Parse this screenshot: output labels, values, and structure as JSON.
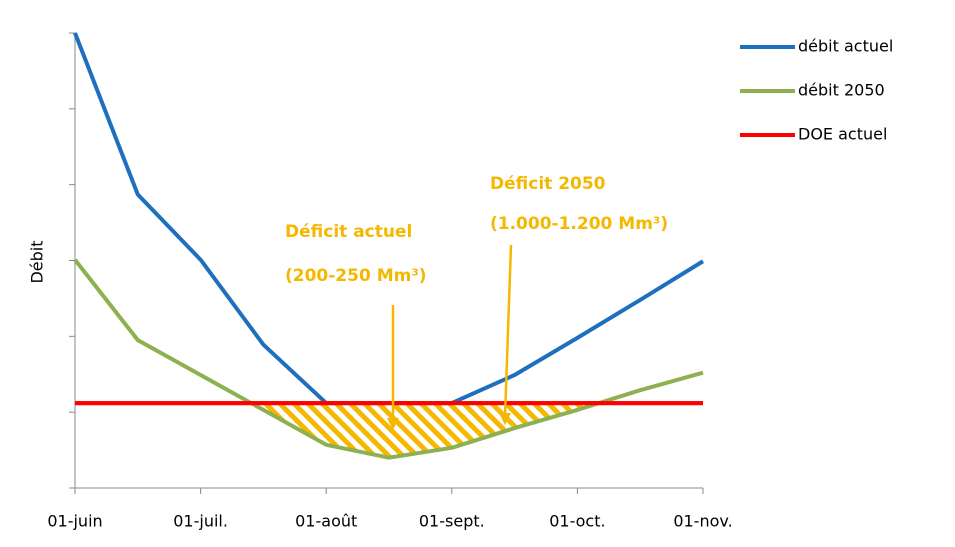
{
  "chart_data": {
    "type": "line",
    "y_label": "Débit",
    "x": [
      0,
      0.5,
      1,
      1.5,
      2,
      2.5,
      3,
      3.5,
      4,
      4.5,
      5
    ],
    "xlim": [
      0,
      5
    ],
    "xticks": [
      {
        "value": 0,
        "label": "01-juin"
      },
      {
        "value": 1,
        "label": "01-juil."
      },
      {
        "value": 2,
        "label": "01-août"
      },
      {
        "value": 3,
        "label": "01-sept."
      },
      {
        "value": 4,
        "label": "01-oct."
      },
      {
        "value": 5,
        "label": "01-nov."
      }
    ],
    "ylim": [
      0,
      6
    ],
    "yticks": [
      0,
      1,
      2,
      3,
      4,
      5,
      6
    ],
    "legend": "right",
    "series": [
      {
        "name": "débit actuel",
        "color": "#1f6fbf",
        "values": [
          6.0,
          3.87,
          3.01,
          1.89,
          1.12,
          1.12,
          1.12,
          1.49,
          1.98,
          2.48,
          2.99
        ]
      },
      {
        "name": "débit 2050",
        "color": "#8db050",
        "values": [
          3.01,
          1.95,
          1.49,
          1.03,
          0.57,
          0.4,
          0.53,
          0.79,
          1.03,
          1.29,
          1.52
        ]
      },
      {
        "name": "DOE actuel",
        "color": "#ff0000",
        "values": [
          1.12,
          1.12,
          1.12,
          1.12,
          1.12,
          1.12,
          1.12,
          1.12,
          1.12,
          1.12,
          1.12
        ]
      }
    ],
    "annotations": [
      {
        "title": "Déficit actuel",
        "text": "(200-250 Mm³)",
        "color": "#f5b800"
      },
      {
        "title": "Déficit 2050",
        "text": "(1.000-1.200 Mm³)",
        "color": "#f5b800"
      }
    ]
  }
}
